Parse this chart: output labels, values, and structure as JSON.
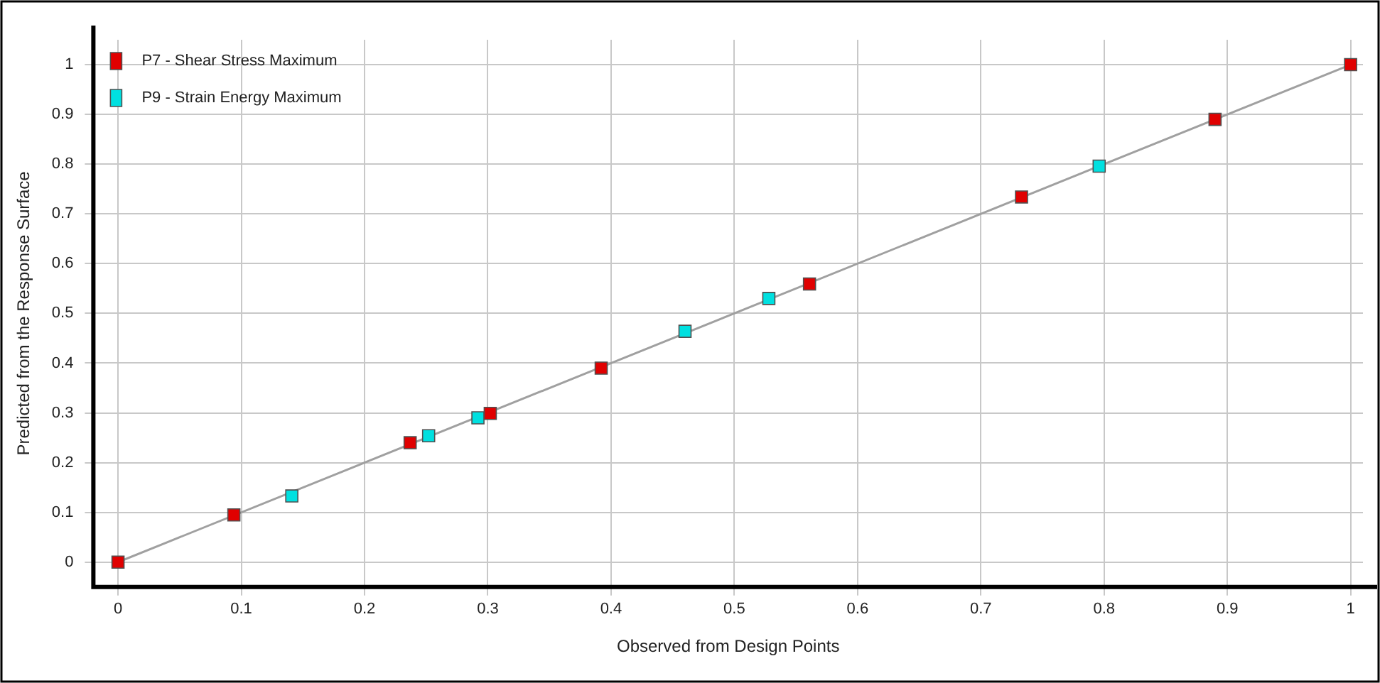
{
  "chart_data": {
    "type": "scatter",
    "xlabel": "Observed from Design Points",
    "ylabel": "Predicted from the Response Surface",
    "xlim": [
      -0.02,
      1.01
    ],
    "ylim": [
      -0.05,
      1.05
    ],
    "xticks": [
      0,
      0.1,
      0.2,
      0.3,
      0.4,
      0.5,
      0.6,
      0.7,
      0.8,
      0.9,
      1
    ],
    "yticks": [
      0,
      0.1,
      0.2,
      0.3,
      0.4,
      0.5,
      0.6,
      0.7,
      0.8,
      0.9,
      1
    ],
    "grid": true,
    "legend": "top left",
    "marker": "square",
    "series": [
      {
        "type": "line",
        "color": "#a0a0a0",
        "marker": "none",
        "x": [
          0,
          1
        ],
        "values": [
          0,
          1
        ]
      },
      {
        "name": "P7 - Shear Stress Maximum",
        "color": "#e00000",
        "x": [
          0,
          0.094,
          0.237,
          0.302,
          0.392,
          0.561,
          0.733,
          0.89,
          1
        ],
        "values": [
          0,
          0.095,
          0.24,
          0.299,
          0.39,
          0.559,
          0.734,
          0.89,
          1
        ]
      },
      {
        "name": "P9 - Strain Energy Maximum",
        "color": "#00e0e0",
        "x": [
          0.141,
          0.252,
          0.292,
          0.46,
          0.528,
          0.796
        ],
        "values": [
          0.133,
          0.254,
          0.29,
          0.464,
          0.53,
          0.796
        ]
      }
    ]
  }
}
